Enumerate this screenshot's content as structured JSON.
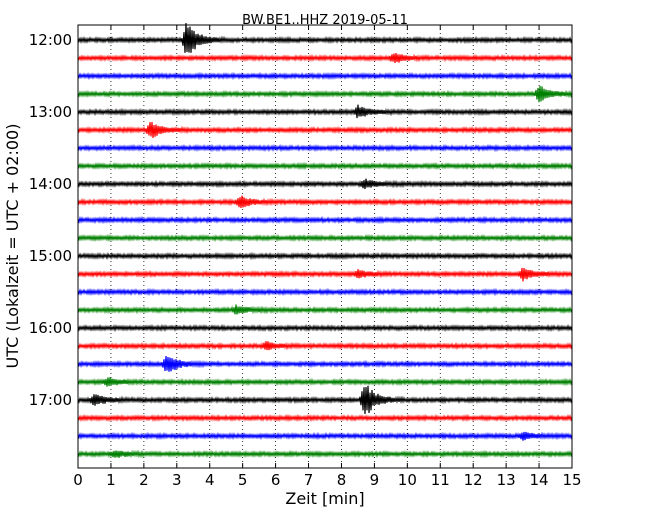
{
  "chart_data": {
    "type": "line",
    "title": "BW.BE1..HHZ 2019-05-11",
    "xlabel": "Zeit  [min]",
    "ylabel": "UTC (Lokalzeit = UTC + 02:00)",
    "xlim": [
      0,
      15
    ],
    "x_ticks": [
      "0",
      "1",
      "2",
      "3",
      "4",
      "5",
      "6",
      "7",
      "8",
      "9",
      "10",
      "11",
      "12",
      "13",
      "14",
      "15"
    ],
    "y_ticks": [
      {
        "label": "12:00",
        "trace": 0
      },
      {
        "label": "13:00",
        "trace": 4
      },
      {
        "label": "14:00",
        "trace": 8
      },
      {
        "label": "15:00",
        "trace": 12
      },
      {
        "label": "16:00",
        "trace": 16
      },
      {
        "label": "17:00",
        "trace": 20
      }
    ],
    "grid": "vertical-dotted",
    "trace_interval_minutes": 15,
    "trace_colors": [
      "#000000",
      "#ff0000",
      "#0000ff",
      "#008000"
    ],
    "traces": [
      {
        "start": "12:00",
        "events": [
          {
            "t": 3.3,
            "amp": 1.0
          }
        ]
      },
      {
        "start": "12:15",
        "events": [
          {
            "t": 9.6,
            "amp": 0.25
          }
        ]
      },
      {
        "start": "12:30",
        "events": []
      },
      {
        "start": "12:45",
        "events": [
          {
            "t": 14.0,
            "amp": 0.45
          }
        ]
      },
      {
        "start": "13:00",
        "events": [
          {
            "t": 8.5,
            "amp": 0.35
          }
        ]
      },
      {
        "start": "13:15",
        "events": [
          {
            "t": 2.2,
            "amp": 0.45
          }
        ]
      },
      {
        "start": "13:30",
        "events": []
      },
      {
        "start": "13:45",
        "events": []
      },
      {
        "start": "14:00",
        "events": [
          {
            "t": 8.7,
            "amp": 0.25
          }
        ]
      },
      {
        "start": "14:15",
        "events": [
          {
            "t": 4.9,
            "amp": 0.35
          }
        ]
      },
      {
        "start": "14:30",
        "events": []
      },
      {
        "start": "14:45",
        "events": []
      },
      {
        "start": "15:00",
        "events": []
      },
      {
        "start": "15:15",
        "events": [
          {
            "t": 13.5,
            "amp": 0.35
          },
          {
            "t": 8.5,
            "amp": 0.2
          }
        ]
      },
      {
        "start": "15:30",
        "events": []
      },
      {
        "start": "15:45",
        "events": [
          {
            "t": 4.8,
            "amp": 0.2
          }
        ]
      },
      {
        "start": "16:00",
        "events": []
      },
      {
        "start": "16:15",
        "events": [
          {
            "t": 5.7,
            "amp": 0.2
          }
        ]
      },
      {
        "start": "16:30",
        "events": [
          {
            "t": 2.7,
            "amp": 0.55
          }
        ]
      },
      {
        "start": "16:45",
        "events": [
          {
            "t": 0.9,
            "amp": 0.2
          }
        ]
      },
      {
        "start": "17:00",
        "events": [
          {
            "t": 8.7,
            "amp": 1.0
          },
          {
            "t": 0.5,
            "amp": 0.3
          }
        ]
      },
      {
        "start": "17:15",
        "events": []
      },
      {
        "start": "17:30",
        "events": [
          {
            "t": 13.5,
            "amp": 0.2
          }
        ]
      },
      {
        "start": "17:45",
        "events": [
          {
            "t": 1.1,
            "amp": 0.2
          }
        ]
      }
    ]
  }
}
